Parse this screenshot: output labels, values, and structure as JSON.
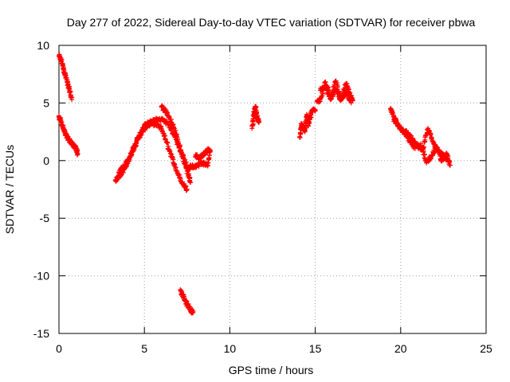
{
  "chart_data": {
    "type": "scatter",
    "title": "Day 277 of 2022, Sidereal Day-to-day VTEC variation (SDTVAR) for receiver pbwa",
    "xlabel": "GPS time / hours",
    "ylabel": "SDTVAR / TECUs",
    "xlim": [
      0,
      25
    ],
    "ylim": [
      -15,
      10
    ],
    "xticks": [
      0,
      5,
      10,
      15,
      20,
      25
    ],
    "yticks": [
      -15,
      -10,
      -5,
      0,
      5,
      10
    ],
    "grid": true,
    "marker": "+",
    "color": "#ff0000",
    "segments": [
      {
        "x": [
          0.0,
          0.15,
          0.3,
          0.45,
          0.6,
          0.75
        ],
        "y": [
          9.1,
          8.6,
          7.8,
          7.0,
          6.2,
          5.3
        ]
      },
      {
        "x": [
          0.0,
          0.1,
          0.25,
          0.4,
          0.6,
          0.8,
          1.0,
          1.1
        ],
        "y": [
          3.8,
          3.5,
          2.8,
          2.2,
          1.8,
          1.4,
          1.1,
          0.6
        ]
      },
      {
        "x": [
          3.3,
          3.5,
          3.8,
          4.0,
          4.3,
          4.6,
          4.9,
          5.2,
          5.6,
          6.0,
          6.3,
          6.6,
          6.9,
          7.2,
          7.5
        ],
        "y": [
          -1.7,
          -1.4,
          -0.8,
          -0.2,
          0.8,
          1.8,
          2.6,
          3.1,
          3.2,
          2.8,
          1.6,
          0.3,
          -0.9,
          -1.9,
          -2.5
        ]
      },
      {
        "x": [
          3.5,
          3.8,
          4.1,
          4.4,
          4.7,
          5.0,
          5.3,
          5.6,
          6.0,
          6.4,
          6.8,
          7.2,
          7.6
        ],
        "y": [
          -1.0,
          -0.5,
          0.2,
          1.2,
          2.2,
          3.0,
          3.3,
          3.5,
          3.6,
          3.2,
          2.0,
          0.5,
          -0.8
        ]
      },
      {
        "x": [
          6.0,
          6.3,
          6.6,
          6.9,
          7.2,
          7.5,
          7.7
        ],
        "y": [
          4.7,
          4.2,
          3.3,
          2.1,
          0.6,
          -0.9,
          -1.9
        ]
      },
      {
        "x": [
          7.5,
          7.8,
          8.1,
          8.4,
          8.7,
          8.85
        ],
        "y": [
          -0.6,
          -0.5,
          -0.4,
          -0.2,
          -0.4,
          0.9
        ]
      },
      {
        "x": [
          8.0,
          8.2,
          8.5,
          8.8
        ],
        "y": [
          0.5,
          0.2,
          0.6,
          1.0
        ]
      },
      {
        "x": [
          7.1,
          7.3,
          7.5,
          7.7,
          7.85
        ],
        "y": [
          -11.2,
          -11.9,
          -12.5,
          -12.9,
          -13.2
        ]
      },
      {
        "x": [
          11.3,
          11.4,
          11.5,
          11.6,
          11.7
        ],
        "y": [
          2.8,
          4.0,
          4.7,
          3.8,
          3.3
        ]
      },
      {
        "x": [
          14.1,
          14.2,
          14.4,
          14.5,
          14.6,
          14.8,
          15.0
        ],
        "y": [
          2.0,
          3.2,
          2.5,
          4.0,
          3.0,
          4.3,
          4.4
        ]
      },
      {
        "x": [
          15.1,
          15.3,
          15.6,
          15.9,
          16.2,
          16.5,
          16.8,
          17.0,
          17.2
        ],
        "y": [
          5.1,
          5.3,
          6.8,
          5.4,
          6.9,
          5.2,
          6.7,
          5.8,
          5.2
        ]
      },
      {
        "x": [
          15.3,
          15.6,
          15.9,
          16.2,
          16.5,
          16.8,
          17.1
        ],
        "y": [
          6.1,
          6.5,
          5.3,
          6.2,
          5.3,
          5.9,
          5.0
        ]
      },
      {
        "x": [
          19.4,
          19.6,
          19.8,
          20.1,
          20.4,
          20.7,
          21.0,
          21.3,
          21.6,
          21.9,
          22.2,
          22.5,
          22.8
        ],
        "y": [
          4.5,
          3.8,
          3.2,
          2.6,
          2.4,
          1.8,
          1.2,
          1.0,
          2.8,
          1.6,
          0.8,
          0.4,
          0.0
        ]
      },
      {
        "x": [
          19.6,
          20.0,
          20.4,
          20.8,
          21.2,
          21.5,
          21.8,
          22.1,
          22.4,
          22.7,
          22.9
        ],
        "y": [
          3.4,
          2.8,
          2.0,
          1.2,
          1.3,
          -0.2,
          0.4,
          1.2,
          0.0,
          0.6,
          -0.4
        ]
      }
    ]
  }
}
